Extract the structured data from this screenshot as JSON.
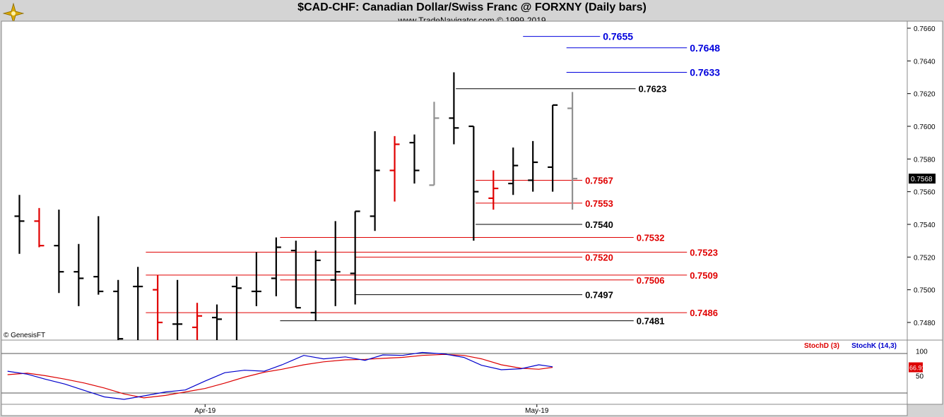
{
  "header": {
    "title": "$CAD-CHF:  Canadian Dollar/Swiss Franc @ FORXNY  (Daily bars)",
    "subtitle": "www.TradeNavigator.com © 1999-2019",
    "logo_icon": "compass-rose-icon"
  },
  "colors": {
    "up_bar": "#000000",
    "down_bar": "#e00000",
    "gray_bar": "#909090",
    "blue_level": "#0000dd",
    "red_level": "#e00000",
    "black_level": "#000000",
    "stoch_d": "#dd0000",
    "stoch_k": "#0000cc"
  },
  "chart_data": [
    {
      "type": "ohlc",
      "title": "$CAD-CHF:  Canadian Dollar/Swiss Franc @ FORXNY  (Daily bars)",
      "ylim": [
        0.7468,
        0.7665
      ],
      "y_ticks": [
        "0.7660",
        "0.7640",
        "0.7620",
        "0.7600",
        "0.7580",
        "0.7560",
        "0.7540",
        "0.7520",
        "0.7500",
        "0.7480"
      ],
      "last_price": "0.7568",
      "copyright": "© GenesisFT",
      "bars": [
        {
          "open": 0.7545,
          "high": 0.7558,
          "low": 0.7522,
          "close": 0.7542,
          "color": "up"
        },
        {
          "open": 0.7542,
          "high": 0.755,
          "low": 0.7526,
          "close": 0.7527,
          "color": "down"
        },
        {
          "open": 0.7527,
          "high": 0.7549,
          "low": 0.7498,
          "close": 0.7511,
          "color": "up"
        },
        {
          "open": 0.7511,
          "high": 0.7528,
          "low": 0.749,
          "close": 0.7507,
          "color": "up"
        },
        {
          "open": 0.7508,
          "high": 0.7545,
          "low": 0.7497,
          "close": 0.7499,
          "color": "up"
        },
        {
          "open": 0.7499,
          "high": 0.7506,
          "low": 0.7468,
          "close": 0.747,
          "color": "up"
        },
        {
          "open": 0.7502,
          "high": 0.7514,
          "low": 0.7468,
          "close": 0.7502,
          "color": "up"
        },
        {
          "open": 0.75,
          "high": 0.7509,
          "low": 0.7468,
          "close": 0.748,
          "color": "down"
        },
        {
          "open": 0.7479,
          "high": 0.7506,
          "low": 0.7468,
          "close": 0.7479,
          "color": "up"
        },
        {
          "open": 0.7477,
          "high": 0.7492,
          "low": 0.7468,
          "close": 0.7484,
          "color": "down"
        },
        {
          "open": 0.7483,
          "high": 0.7491,
          "low": 0.7468,
          "close": 0.7482,
          "color": "up"
        },
        {
          "open": 0.7502,
          "high": 0.7508,
          "low": 0.7468,
          "close": 0.7501,
          "color": "up"
        },
        {
          "open": 0.7499,
          "high": 0.7523,
          "low": 0.749,
          "close": 0.7499,
          "color": "up"
        },
        {
          "open": 0.7507,
          "high": 0.7532,
          "low": 0.7496,
          "close": 0.7526,
          "color": "up"
        },
        {
          "open": 0.7524,
          "high": 0.753,
          "low": 0.7489,
          "close": 0.7489,
          "color": "up"
        },
        {
          "open": 0.7486,
          "high": 0.7524,
          "low": 0.7481,
          "close": 0.7518,
          "color": "up"
        },
        {
          "open": 0.7506,
          "high": 0.7542,
          "low": 0.749,
          "close": 0.7511,
          "color": "up"
        },
        {
          "open": 0.751,
          "high": 0.7548,
          "low": 0.7491,
          "close": 0.7548,
          "color": "up"
        },
        {
          "open": 0.7545,
          "high": 0.7597,
          "low": 0.7536,
          "close": 0.7573,
          "color": "up"
        },
        {
          "open": 0.7573,
          "high": 0.7594,
          "low": 0.7554,
          "close": 0.7589,
          "color": "down"
        },
        {
          "open": 0.759,
          "high": 0.7595,
          "low": 0.7565,
          "close": 0.7573,
          "color": "up"
        },
        {
          "open": 0.7564,
          "high": 0.7615,
          "low": 0.7564,
          "close": 0.7605,
          "color": "gray"
        },
        {
          "open": 0.7605,
          "high": 0.7633,
          "low": 0.7589,
          "close": 0.7599,
          "color": "up"
        },
        {
          "open": 0.76,
          "high": 0.76,
          "low": 0.753,
          "close": 0.756,
          "color": "up"
        },
        {
          "open": 0.7556,
          "high": 0.7573,
          "low": 0.7549,
          "close": 0.7562,
          "color": "down"
        },
        {
          "open": 0.7565,
          "high": 0.7587,
          "low": 0.7558,
          "close": 0.7576,
          "color": "up"
        },
        {
          "open": 0.7567,
          "high": 0.7591,
          "low": 0.756,
          "close": 0.7578,
          "color": "up"
        },
        {
          "open": 0.7575,
          "high": 0.7613,
          "low": 0.756,
          "close": 0.7613,
          "color": "up"
        },
        {
          "open": 0.7611,
          "high": 0.7621,
          "low": 0.7549,
          "close": 0.7568,
          "color": "gray"
        }
      ],
      "levels": [
        {
          "label": "0.7655",
          "value": 0.7655,
          "color": "blue",
          "from_bar": 25.5,
          "to_bar": 29.4
        },
        {
          "label": "0.7648",
          "value": 0.7648,
          "color": "blue",
          "from_bar": 27.7,
          "to_bar": 33.8
        },
        {
          "label": "0.7633",
          "value": 0.7633,
          "color": "blue",
          "from_bar": 27.7,
          "to_bar": 33.8
        },
        {
          "label": "0.7623",
          "value": 0.7623,
          "color": "black",
          "from_bar": 22.1,
          "to_bar": 31.2
        },
        {
          "label": "0.7567",
          "value": 0.7567,
          "color": "red",
          "from_bar": 23.1,
          "to_bar": 28.5
        },
        {
          "label": "0.7553",
          "value": 0.7553,
          "color": "red",
          "from_bar": 23.1,
          "to_bar": 28.5
        },
        {
          "label": "0.7540",
          "value": 0.754,
          "color": "black",
          "from_bar": 23.1,
          "to_bar": 28.5
        },
        {
          "label": "0.7532",
          "value": 0.7532,
          "color": "red",
          "from_bar": 13.2,
          "to_bar": 31.1
        },
        {
          "label": "0.7523",
          "value": 0.7523,
          "color": "red",
          "from_bar": 6.4,
          "to_bar": 33.8
        },
        {
          "label": "0.7520",
          "value": 0.752,
          "color": "red",
          "from_bar": 17.0,
          "to_bar": 28.5
        },
        {
          "label": "0.7509",
          "value": 0.7509,
          "color": "red",
          "from_bar": 6.4,
          "to_bar": 33.8
        },
        {
          "label": "0.7506",
          "value": 0.7506,
          "color": "red",
          "from_bar": 13.2,
          "to_bar": 31.1
        },
        {
          "label": "0.7497",
          "value": 0.7497,
          "color": "black",
          "from_bar": 17.0,
          "to_bar": 28.5
        },
        {
          "label": "0.7486",
          "value": 0.7486,
          "color": "red",
          "from_bar": 6.4,
          "to_bar": 33.8
        },
        {
          "label": "0.7481",
          "value": 0.7481,
          "color": "black",
          "from_bar": 13.2,
          "to_bar": 31.1
        }
      ]
    },
    {
      "type": "line",
      "title": "",
      "legend": [
        "StochD (3)",
        "StochK (14,3)"
      ],
      "ylim": [
        -8,
        122
      ],
      "y_ticks": [
        "100",
        "50"
      ],
      "last_value": "66.91",
      "x_labels": [
        {
          "label": "Apr-19",
          "bar": 9.4
        },
        {
          "label": "May-19",
          "bar": 26.2
        }
      ],
      "series": [
        {
          "name": "StochD (3)",
          "color": "red",
          "points": [
            [
              -0.6,
              52
            ],
            [
              0.4,
              55
            ],
            [
              1.3,
              50
            ],
            [
              2.3,
              43
            ],
            [
              3.3,
              35
            ],
            [
              4.3,
              25
            ],
            [
              5.3,
              13
            ],
            [
              6.3,
              5
            ],
            [
              7.4,
              10
            ],
            [
              8.4,
              17
            ],
            [
              9.4,
              24
            ],
            [
              10.4,
              35
            ],
            [
              11.4,
              47
            ],
            [
              12.4,
              57
            ],
            [
              13.3,
              63
            ],
            [
              14.4,
              72
            ],
            [
              15.4,
              78
            ],
            [
              16.5,
              82
            ],
            [
              17.5,
              83
            ],
            [
              18.4,
              85
            ],
            [
              19.4,
              87
            ],
            [
              20.4,
              91
            ],
            [
              21.5,
              93
            ],
            [
              22.5,
              91
            ],
            [
              23.4,
              84
            ],
            [
              24.4,
              72
            ],
            [
              25.4,
              65
            ],
            [
              26.3,
              63
            ],
            [
              27.0,
              66.91
            ]
          ]
        },
        {
          "name": "StochK (14,3)",
          "color": "blue",
          "points": [
            [
              -0.6,
              59
            ],
            [
              0.4,
              53
            ],
            [
              1.3,
              43
            ],
            [
              2.3,
              33
            ],
            [
              3.3,
              20
            ],
            [
              4.3,
              7
            ],
            [
              5.3,
              2
            ],
            [
              6.3,
              9
            ],
            [
              7.4,
              17
            ],
            [
              8.4,
              21
            ],
            [
              9.4,
              39
            ],
            [
              10.4,
              56
            ],
            [
              11.4,
              61
            ],
            [
              12.4,
              59
            ],
            [
              13.3,
              72
            ],
            [
              14.4,
              91
            ],
            [
              15.4,
              84
            ],
            [
              16.5,
              88
            ],
            [
              17.5,
              81
            ],
            [
              18.4,
              92
            ],
            [
              19.4,
              91
            ],
            [
              20.4,
              97
            ],
            [
              21.5,
              94
            ],
            [
              22.5,
              87
            ],
            [
              23.4,
              71
            ],
            [
              24.4,
              62
            ],
            [
              25.4,
              64
            ],
            [
              26.3,
              72
            ],
            [
              27.0,
              68
            ]
          ]
        }
      ]
    }
  ]
}
